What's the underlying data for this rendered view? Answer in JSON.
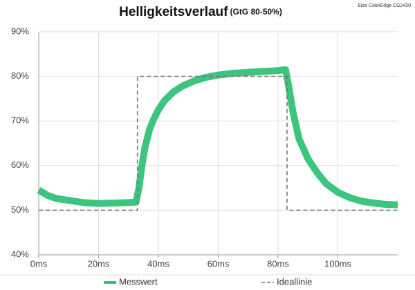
{
  "chart_data": {
    "type": "line",
    "title": "Helligkeitsverlauf",
    "subtitle": "(GtG 80-50%)",
    "note": "Eizo ColorEdge CG2420",
    "xlim": [
      0,
      120
    ],
    "xticks": [
      {
        "value": 0,
        "label": "0ms"
      },
      {
        "value": 20,
        "label": "20ms"
      },
      {
        "value": 40,
        "label": "40ms"
      },
      {
        "value": 60,
        "label": "60ms"
      },
      {
        "value": 80,
        "label": "80ms"
      },
      {
        "value": 100,
        "label": "100ms"
      }
    ],
    "ylim": [
      40,
      90
    ],
    "yticks": [
      {
        "value": 40,
        "label": "40%"
      },
      {
        "value": 50,
        "label": "50%"
      },
      {
        "value": 60,
        "label": "60%"
      },
      {
        "value": 70,
        "label": "70%"
      },
      {
        "value": 80,
        "label": "80%"
      },
      {
        "value": 90,
        "label": "90%"
      }
    ],
    "grid": true,
    "legend": "bottom",
    "series": [
      {
        "name": "Messwert",
        "color": "#33c178",
        "style": "solid",
        "x": [
          0,
          3,
          6,
          10,
          15,
          20,
          25,
          30,
          32.5,
          33.5,
          34.5,
          35.5,
          37,
          38.5,
          40,
          42,
          45,
          48,
          52,
          56,
          60,
          65,
          70,
          75,
          80,
          82.5,
          83.5,
          85,
          87,
          90,
          93,
          96,
          100,
          104,
          108,
          112,
          116,
          120
        ],
        "values": [
          54.5,
          53.3,
          52.6,
          52.2,
          51.7,
          51.5,
          51.6,
          51.7,
          51.8,
          55,
          60,
          64,
          68,
          70.5,
          72.5,
          74.5,
          76.5,
          77.8,
          79,
          79.8,
          80.3,
          80.7,
          80.9,
          81.1,
          81.3,
          81.5,
          78,
          72,
          66,
          61.5,
          58.5,
          56,
          54,
          52.8,
          52,
          51.6,
          51.3,
          51.2
        ]
      },
      {
        "name": "Ideallinie",
        "color": "#777777",
        "style": "dashed",
        "x": [
          0,
          33,
          33,
          83,
          83,
          120
        ],
        "values": [
          50,
          50,
          80,
          80,
          50,
          50
        ]
      }
    ]
  }
}
